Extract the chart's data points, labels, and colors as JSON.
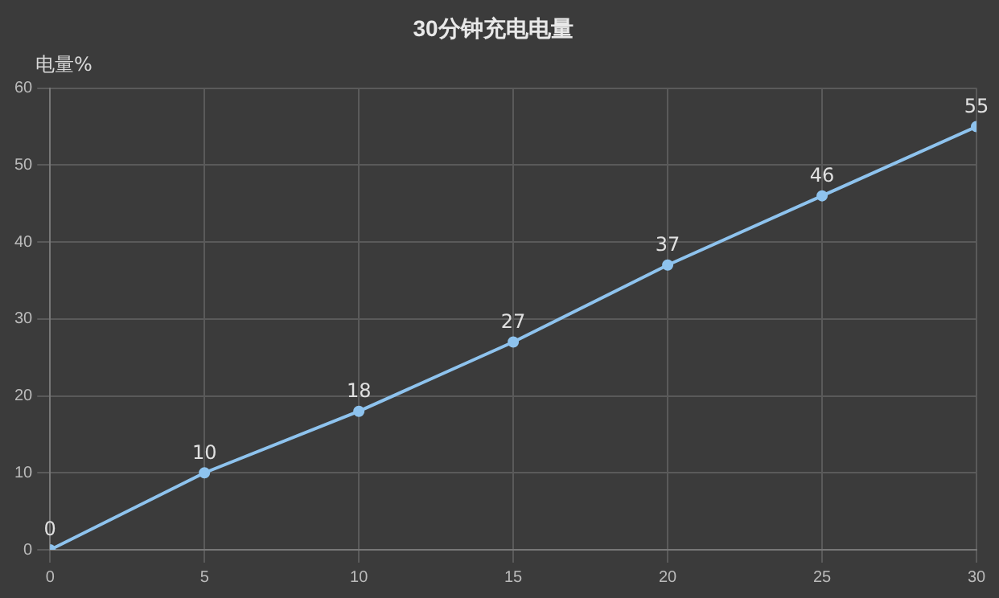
{
  "chart_data": {
    "type": "line",
    "title": "30分钟充电电量",
    "ylabel": "电量%",
    "x": [
      0,
      5,
      10,
      15,
      20,
      25,
      30
    ],
    "series": [
      {
        "color": "#8ec3ee",
        "values": [
          0,
          10,
          18,
          27,
          37,
          46,
          55
        ]
      }
    ],
    "xlim": [
      0,
      30
    ],
    "xticks": [
      0,
      5,
      10,
      15,
      20,
      25,
      30
    ],
    "ylim": [
      0,
      60
    ],
    "yticks": [
      0,
      10,
      20,
      30,
      40,
      50,
      60
    ],
    "grid": true,
    "legend": false,
    "marker": "circle",
    "line_style": "solid",
    "data_labels": true
  }
}
